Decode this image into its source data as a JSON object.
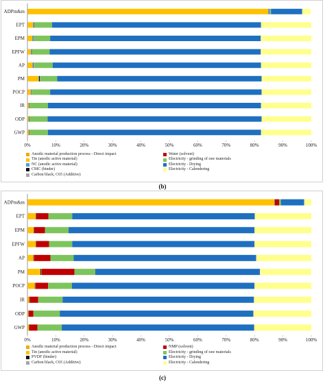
{
  "chart_data": [
    {
      "panel": "b",
      "type": "bar",
      "orientation": "horizontal",
      "stacked": true,
      "categories": [
        "ADPm&m",
        "EPT",
        "EPM",
        "EPFW",
        "AP",
        "PM",
        "POCP",
        "IR",
        "ODP",
        "GWP"
      ],
      "xlim": [
        0,
        100
      ],
      "xticks": [
        "0%",
        "10%",
        "20%",
        "30%",
        "40%",
        "50%",
        "60%",
        "70%",
        "80%",
        "90%",
        "100%"
      ],
      "grid": false,
      "legend_position": "bottom",
      "series": [
        {
          "name": "Anodic material production process - Direct impact",
          "color": "#f2a800",
          "values": [
            0.4,
            0.3,
            0.3,
            0.3,
            0.3,
            0.3,
            0.3,
            0.2,
            0.2,
            0.2
          ]
        },
        {
          "name": "Tin (anodic active material)",
          "color": "#ffc000",
          "values": [
            84.4,
            1.7,
            1.4,
            0.9,
            1.5,
            3.6,
            0.9,
            0.3,
            0.2,
            0.3
          ]
        },
        {
          "name": "NC (anodic active material)",
          "color": "#5b9bd5",
          "values": [
            0.4,
            0.3,
            0.3,
            0.3,
            0.3,
            0.2,
            0.2,
            0.1,
            0.1,
            0.1
          ]
        },
        {
          "name": "CMC (binder)",
          "color": "#111111",
          "values": [
            0.1,
            0.1,
            0.1,
            0.1,
            0.1,
            0.3,
            0.1,
            0.1,
            0.1,
            0.1
          ]
        },
        {
          "name": "Carbon black, C65 (Additive)",
          "color": "#a5a5a5",
          "values": [
            0.2,
            0.1,
            0.1,
            0.1,
            0.3,
            0.1,
            0.1,
            0.1,
            0.1,
            0.1
          ]
        },
        {
          "name": "Water (solvent)",
          "color": "#c00000",
          "values": [
            0.0,
            0.0,
            0.0,
            0.0,
            0.0,
            0.0,
            0.0,
            0.0,
            0.0,
            0.0
          ]
        },
        {
          "name": "Electricity - grinding of raw materials",
          "color": "#7dc45d",
          "values": [
            0.3,
            6.2,
            5.8,
            6.1,
            6.4,
            6.0,
            6.4,
            6.4,
            6.4,
            6.4
          ]
        },
        {
          "name": "Electricity - Drying",
          "color": "#1f6fc0",
          "values": [
            11.0,
            73.6,
            74.2,
            74.4,
            73.4,
            72.0,
            74.5,
            75.1,
            75.4,
            75.1
          ]
        },
        {
          "name": "Electricity - Calendering",
          "color": "#ffff8c",
          "values": [
            2.9,
            17.7,
            17.8,
            17.8,
            17.7,
            17.5,
            17.5,
            17.7,
            17.5,
            17.7
          ]
        }
      ]
    },
    {
      "panel": "c",
      "type": "bar",
      "orientation": "horizontal",
      "stacked": true,
      "categories": [
        "ADPm&m",
        "EPT",
        "EPM",
        "EPFW",
        "AP",
        "PM",
        "POCP",
        "IR",
        "ODP",
        "GWP"
      ],
      "xlim": [
        0,
        100
      ],
      "xticks": [
        "0%",
        "10%",
        "20%",
        "30%",
        "40%",
        "50%",
        "60%",
        "70%",
        "80%",
        "90%",
        "100%"
      ],
      "grid": false,
      "legend_position": "bottom",
      "series": [
        {
          "name": "Anodic material production process - Direct impact",
          "color": "#f2a800",
          "values": [
            0.3,
            0.2,
            0.2,
            0.2,
            0.2,
            0.2,
            0.2,
            0.1,
            0.1,
            0.1
          ]
        },
        {
          "name": "Tin (anodic active material)",
          "color": "#ffc000",
          "values": [
            86.7,
            2.7,
            2.0,
            2.7,
            1.9,
            4.4,
            2.4,
            0.5,
            0.2,
            0.4
          ]
        },
        {
          "name": "PVDF (binder)",
          "color": "#111111",
          "values": [
            0.1,
            0.1,
            0.1,
            0.1,
            0.1,
            0.3,
            0.1,
            0.1,
            0.1,
            0.1
          ]
        },
        {
          "name": "Carbon black, C65 (Additive)",
          "color": "#a5a5a5",
          "values": [
            0.1,
            0.1,
            0.1,
            0.1,
            0.1,
            0.1,
            0.1,
            0.1,
            0.1,
            0.1
          ]
        },
        {
          "name": "NMP (solvent)",
          "color": "#c00000",
          "values": [
            1.5,
            4.3,
            3.8,
            4.5,
            5.8,
            11.6,
            4.5,
            3.0,
            1.6,
            2.8
          ]
        },
        {
          "name": "Electricity - grinding of raw materials",
          "color": "#7dc45d",
          "values": [
            0.6,
            8.4,
            8.3,
            8.2,
            8.2,
            7.3,
            8.4,
            8.6,
            9.3,
            8.6
          ]
        },
        {
          "name": "Electricity - Drying",
          "color": "#1f6fc0",
          "values": [
            8.2,
            64.3,
            65.5,
            64.2,
            64.3,
            58.0,
            64.3,
            67.4,
            68.2,
            67.8
          ]
        },
        {
          "name": "Electricity - Calendering",
          "color": "#ffff8c",
          "values": [
            2.5,
            19.9,
            20.0,
            20.0,
            19.4,
            18.0,
            20.0,
            20.2,
            20.4,
            20.1
          ]
        }
      ]
    }
  ],
  "legends": {
    "b": [
      "Anodic material production process - Direct impact",
      "Tin (anodic active material)",
      "NC (anodic active material)",
      "CMC (binder)",
      "Carbon black, C65 (Additive)",
      "Water (solvent)",
      "Electricity - grinding of raw materials",
      "Electricity - Drying",
      "Electricity - Calendering"
    ],
    "c": [
      "Anodic material production process - Direct impact",
      "Tin (anodic active material)",
      "PVDF (binder)",
      "Carbon black, C65 (Additive)",
      "NMP (solvent)",
      "Electricity - grinding of raw materials",
      "Electricity - Drying",
      "Electricity - Calendering"
    ]
  },
  "panel_labels": {
    "b": "(b)",
    "c": "(c)"
  }
}
